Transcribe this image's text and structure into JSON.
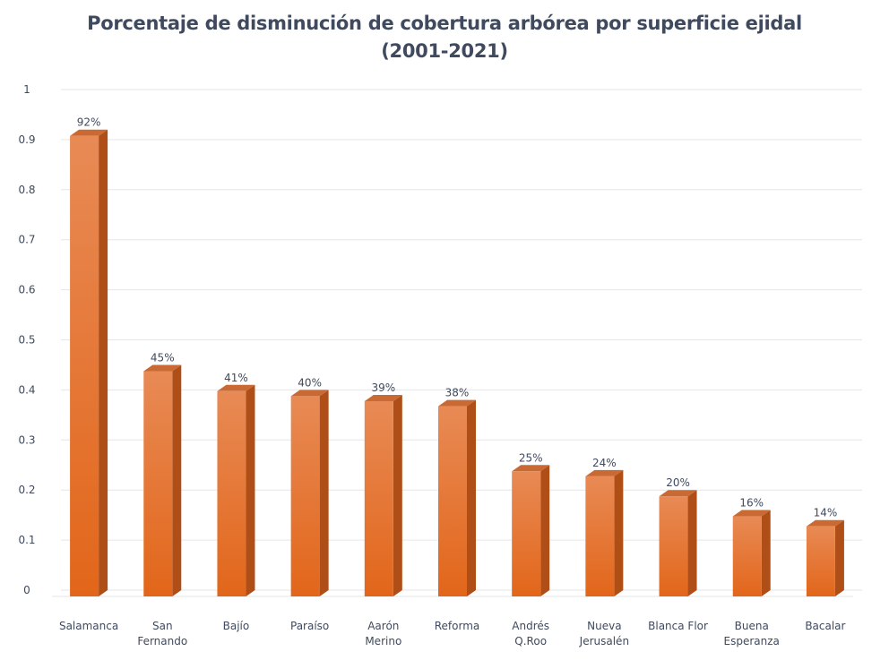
{
  "chart_data": {
    "type": "bar",
    "title_lines": [
      "Porcentaje de disminución de cobertura arbórea por superficie ejidal",
      "(2001-2021)"
    ],
    "categories": [
      [
        "Salamanca"
      ],
      [
        "San",
        "Fernando"
      ],
      [
        "Bajío"
      ],
      [
        "Paraíso"
      ],
      [
        "Aarón",
        "Merino"
      ],
      [
        "Reforma"
      ],
      [
        "Andrés",
        "Q.Roo"
      ],
      [
        "Nueva",
        "Jerusalén"
      ],
      [
        "Blanca Flor"
      ],
      [
        "Buena",
        "Esperanza"
      ],
      [
        "Bacalar"
      ]
    ],
    "values": [
      0.92,
      0.45,
      0.41,
      0.4,
      0.39,
      0.38,
      0.25,
      0.24,
      0.2,
      0.16,
      0.14
    ],
    "data_labels": [
      "92%",
      "45%",
      "41%",
      "40%",
      "39%",
      "38%",
      "25%",
      "24%",
      "20%",
      "16%",
      "14%"
    ],
    "ylim": [
      0,
      1
    ],
    "yticks": [
      "0",
      "0.1",
      "0.2",
      "0.3",
      "0.4",
      "0.5",
      "0.6",
      "0.7",
      "0.8",
      "0.9",
      "1"
    ],
    "xlabel": "",
    "ylabel": "",
    "grid": true,
    "legend": "none",
    "colors": {
      "bar_front_top": "#e88a55",
      "bar_front_bottom": "#e2661a",
      "bar_side": "#b04e17",
      "bar_top": "#c96a34",
      "grid": "#e6e6e6",
      "text": "#404a5e"
    }
  }
}
